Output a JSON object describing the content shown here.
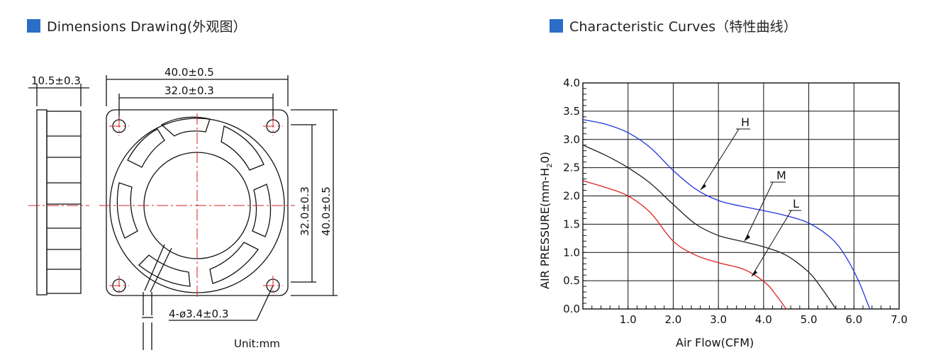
{
  "headers": {
    "left_title": "Dimensions Drawing(外观图）",
    "right_title": "Characteristic Curves（特性曲线）",
    "marker_color": "#2b6ec6"
  },
  "drawing": {
    "thickness_dim": "10.5±0.3",
    "overall_width_dim": "40.0±0.5",
    "hole_pitch_width_dim": "32.0±0.3",
    "hole_pitch_height_dim": "32.0±0.3",
    "overall_height_dim": "40.0±0.5",
    "hole_dim": "4-ø3.4±0.3",
    "unit_label": "Unit:mm",
    "centerline_color": "#d62020"
  },
  "chart_data": {
    "type": "line",
    "title": "",
    "xlabel": "Air Flow(CFM)",
    "ylabel": "AIR PRESSURE(mm-H2O)",
    "ylabel_parts": {
      "main": "AIR PRESSURE(mm-H",
      "sub": "2",
      "end": "0)"
    },
    "xlim": [
      0,
      7.0
    ],
    "ylim": [
      0,
      4.0
    ],
    "x_ticks": [
      "1.0",
      "2.0",
      "3.0",
      "4.0",
      "5.0",
      "6.0",
      "7.0"
    ],
    "y_ticks": [
      "0.0",
      "0.5",
      "1.0",
      "1.5",
      "2.0",
      "2.5",
      "3.0",
      "3.5",
      "4.0"
    ],
    "grid": true,
    "series": [
      {
        "name": "H",
        "color": "#2233dd",
        "x": [
          0,
          0.5,
          1.0,
          1.5,
          2.0,
          2.5,
          3.0,
          3.5,
          4.0,
          4.5,
          5.0,
          5.5,
          5.8,
          6.1,
          6.35
        ],
        "y": [
          3.35,
          3.27,
          3.12,
          2.85,
          2.45,
          2.12,
          1.92,
          1.82,
          1.74,
          1.65,
          1.52,
          1.25,
          0.95,
          0.5,
          0.0
        ]
      },
      {
        "name": "M",
        "color": "#222222",
        "x": [
          0,
          0.5,
          1.0,
          1.5,
          2.0,
          2.5,
          3.0,
          3.5,
          4.0,
          4.5,
          5.0,
          5.3,
          5.6
        ],
        "y": [
          2.9,
          2.72,
          2.5,
          2.22,
          1.85,
          1.5,
          1.3,
          1.2,
          1.1,
          0.95,
          0.65,
          0.35,
          0.0
        ]
      },
      {
        "name": "L",
        "color": "#e02020",
        "x": [
          0,
          0.5,
          1.0,
          1.5,
          2.0,
          2.5,
          3.0,
          3.5,
          3.8,
          4.1,
          4.3,
          4.5
        ],
        "y": [
          2.27,
          2.15,
          2.0,
          1.7,
          1.2,
          0.95,
          0.82,
          0.72,
          0.6,
          0.42,
          0.22,
          0.0
        ]
      }
    ]
  }
}
